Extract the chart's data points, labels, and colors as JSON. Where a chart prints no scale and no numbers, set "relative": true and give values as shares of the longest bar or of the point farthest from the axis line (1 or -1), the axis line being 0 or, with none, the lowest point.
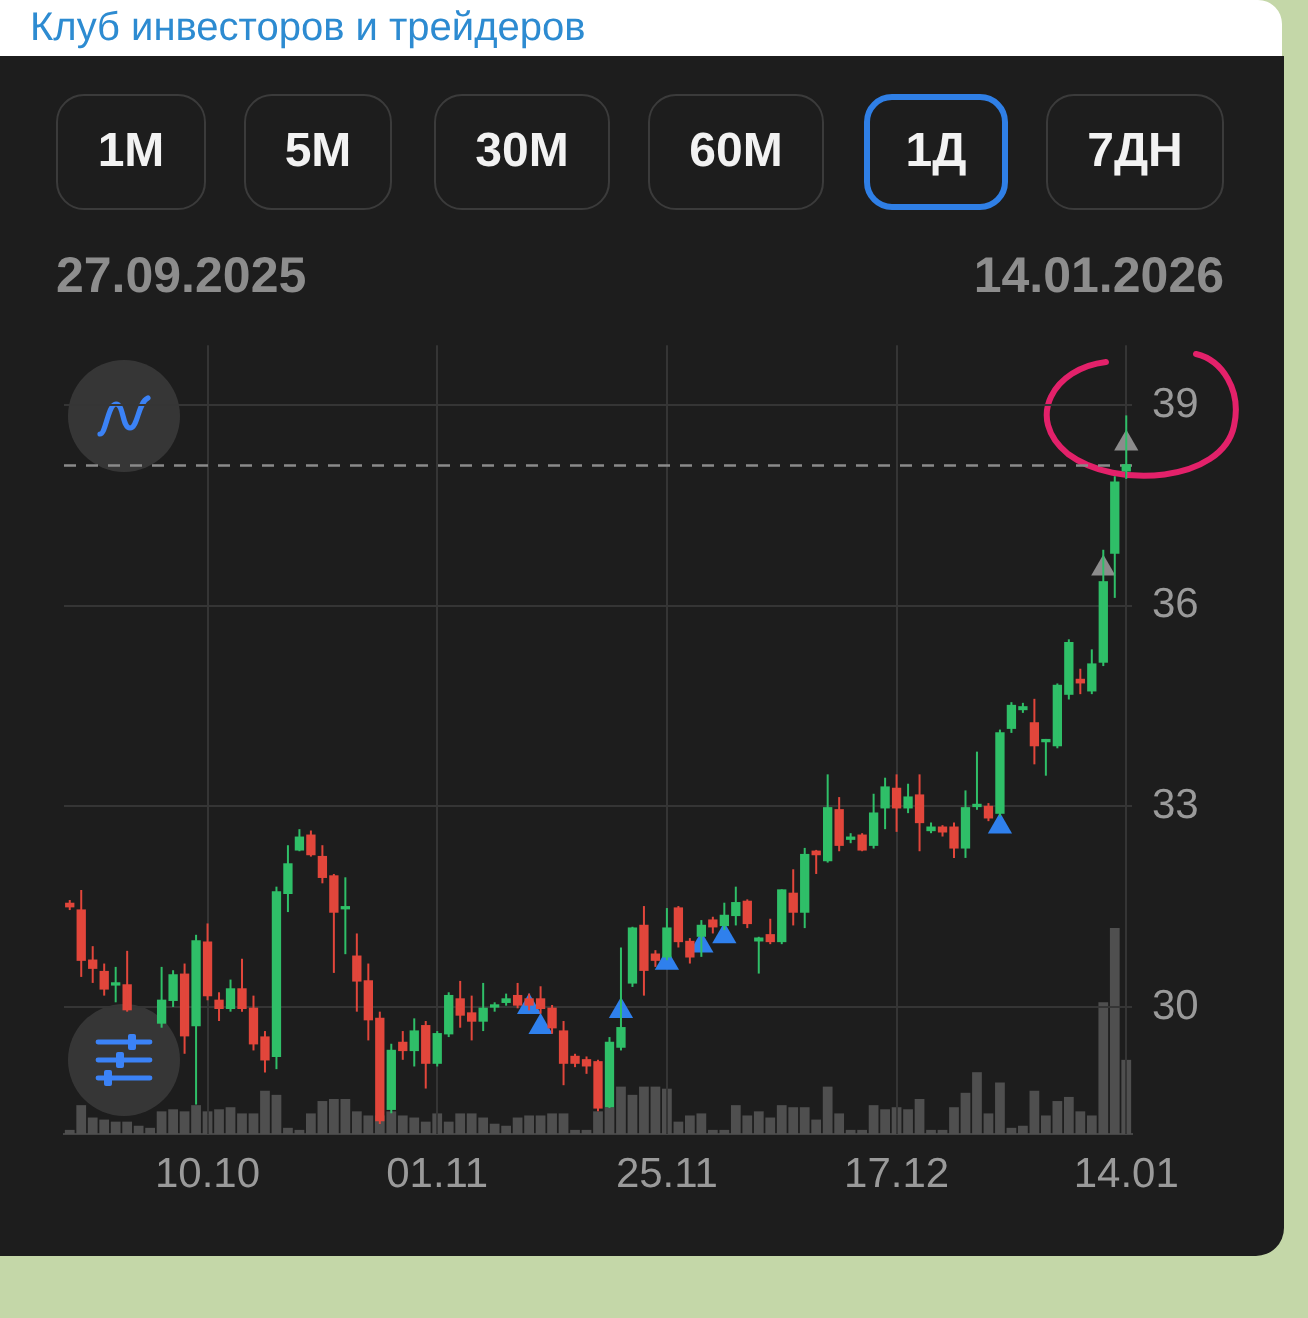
{
  "chart_data": [
    {
      "type": "candlestick",
      "annotations": [
        "Клуб инвесторов и трейдеров",
        "1М",
        "5М",
        "30М",
        "60М",
        "1Д",
        "7ДН",
        "27.09.2025",
        "14.01.2026"
      ],
      "categories": [
        null,
        null,
        null,
        null,
        null,
        null,
        null,
        null,
        null,
        null,
        null,
        null,
        "10.10",
        null,
        null,
        null,
        null,
        null,
        null,
        null,
        null,
        null,
        null,
        null,
        null,
        null,
        null,
        null,
        null,
        null,
        null,
        null,
        "01.11",
        null,
        null,
        null,
        null,
        null,
        null,
        null,
        null,
        null,
        null,
        null,
        null,
        null,
        null,
        null,
        null,
        null,
        null,
        null,
        "25.11",
        null,
        null,
        null,
        null,
        null,
        null,
        null,
        null,
        null,
        null,
        null,
        null,
        null,
        null,
        null,
        null,
        null,
        null,
        null,
        "17.12",
        null,
        null,
        null,
        null,
        null,
        null,
        null,
        null,
        null,
        null,
        null,
        null,
        null,
        null,
        null,
        null,
        null,
        null,
        null,
        "14.01"
      ],
      "ohlc": [
        [
          31.55,
          31.6,
          31.45,
          31.5
        ],
        [
          31.45,
          31.75,
          30.45,
          30.7
        ],
        [
          30.7,
          30.91,
          30.36,
          30.58
        ],
        [
          30.53,
          30.65,
          30.17,
          30.27
        ],
        [
          30.33,
          30.6,
          30.07,
          30.36
        ],
        [
          30.33,
          30.84,
          29.93,
          29.96
        ],
        null,
        null,
        [
          29.76,
          30.6,
          29.69,
          30.1
        ],
        [
          30.1,
          30.55,
          30.0,
          30.48
        ],
        [
          30.49,
          30.65,
          29.3,
          29.57
        ],
        [
          29.72,
          31.08,
          28.54,
          30.99
        ],
        [
          30.97,
          31.25,
          30.1,
          30.17
        ],
        [
          30.1,
          30.22,
          29.79,
          29.98
        ],
        [
          29.98,
          30.41,
          29.93,
          30.27
        ],
        [
          30.27,
          30.72,
          29.93,
          29.98
        ],
        [
          29.98,
          30.17,
          29.35,
          29.45
        ],
        [
          29.55,
          29.64,
          29.02,
          29.21
        ],
        [
          29.26,
          31.8,
          29.07,
          31.72
        ],
        [
          31.7,
          32.42,
          31.42,
          32.14
        ],
        [
          32.35,
          32.66,
          32.33,
          32.54
        ],
        [
          32.57,
          32.64,
          32.25,
          32.28
        ],
        [
          32.25,
          32.42,
          31.85,
          31.94
        ],
        [
          31.96,
          31.99,
          30.51,
          31.42
        ],
        [
          31.47,
          31.94,
          30.79,
          31.5
        ],
        [
          30.76,
          31.1,
          29.93,
          30.39
        ],
        [
          30.39,
          30.65,
          29.5,
          29.81
        ],
        [
          29.83,
          29.93,
          28.25,
          28.3
        ],
        [
          28.47,
          29.45,
          28.41,
          29.35
        ],
        [
          29.47,
          29.64,
          29.21,
          29.35
        ],
        [
          29.35,
          29.83,
          29.11,
          29.64
        ],
        [
          29.72,
          29.79,
          28.78,
          29.16
        ],
        [
          29.16,
          29.64,
          29.11,
          29.6
        ],
        [
          29.6,
          30.22,
          29.55,
          30.17
        ],
        [
          30.12,
          30.39,
          29.69,
          29.88
        ],
        [
          29.91,
          30.17,
          29.5,
          29.79
        ],
        [
          29.79,
          30.36,
          29.64,
          29.98
        ],
        [
          30.0,
          30.07,
          29.93,
          30.03
        ],
        [
          30.07,
          30.2,
          30.02,
          30.12
        ],
        [
          30.17,
          30.36,
          29.98,
          30.03
        ],
        [
          30.12,
          30.2,
          29.95,
          30.03
        ],
        [
          30.12,
          30.31,
          29.9,
          29.98
        ],
        [
          29.98,
          30.03,
          29.6,
          29.69
        ],
        [
          29.64,
          29.79,
          28.83,
          29.16
        ],
        [
          29.26,
          29.3,
          29.1,
          29.16
        ],
        [
          29.21,
          29.26,
          29.0,
          29.12
        ],
        [
          29.18,
          29.21,
          28.44,
          28.49
        ],
        [
          28.51,
          29.55,
          28.49,
          29.47
        ],
        [
          29.4,
          30.89,
          29.35,
          29.69
        ],
        [
          30.36,
          31.2,
          30.3,
          31.18
        ],
        [
          31.22,
          31.51,
          30.17,
          30.55
        ],
        [
          30.79,
          30.85,
          30.6,
          30.7
        ],
        [
          30.75,
          31.48,
          30.7,
          31.18
        ],
        [
          31.48,
          31.51,
          30.89,
          30.98
        ],
        [
          30.98,
          31.03,
          30.65,
          30.75
        ],
        [
          31.06,
          31.3,
          30.75,
          31.22
        ],
        [
          31.3,
          31.35,
          31.1,
          31.2
        ],
        [
          31.22,
          31.56,
          31.15,
          31.37
        ],
        [
          31.37,
          31.8,
          31.22,
          31.56
        ],
        [
          31.58,
          31.61,
          31.18,
          31.25
        ],
        [
          30.99,
          31.05,
          30.5,
          31.03
        ],
        [
          31.08,
          31.32,
          30.94,
          30.98
        ],
        [
          30.98,
          31.76,
          30.94,
          31.75
        ],
        [
          31.7,
          32.06,
          31.22,
          31.42
        ],
        [
          31.42,
          32.38,
          31.18,
          32.28
        ],
        [
          32.33,
          32.35,
          31.99,
          32.28
        ],
        [
          32.19,
          33.48,
          32.16,
          32.98
        ],
        [
          32.95,
          33.14,
          32.33,
          32.42
        ],
        [
          32.51,
          32.6,
          32.45,
          32.54
        ],
        [
          32.57,
          32.6,
          32.33,
          32.35
        ],
        [
          32.42,
          33.19,
          32.37,
          32.9
        ],
        [
          32.98,
          33.43,
          32.66,
          33.29
        ],
        [
          33.27,
          33.48,
          32.62,
          32.98
        ],
        [
          32.98,
          33.34,
          32.9,
          33.14
        ],
        [
          33.17,
          33.48,
          32.33,
          32.76
        ],
        [
          32.64,
          32.76,
          32.6,
          32.69
        ],
        [
          32.69,
          32.72,
          32.55,
          32.62
        ],
        [
          32.69,
          32.76,
          32.23,
          32.38
        ],
        [
          32.38,
          33.24,
          32.23,
          32.98
        ],
        [
          33.0,
          33.82,
          32.95,
          33.03
        ],
        [
          33.0,
          33.05,
          32.78,
          32.83
        ],
        [
          32.9,
          34.15,
          32.85,
          34.1
        ],
        [
          34.17,
          34.56,
          34.1,
          34.51
        ],
        [
          34.45,
          34.55,
          34.4,
          34.49
        ],
        [
          34.25,
          34.61,
          33.63,
          33.91
        ],
        [
          33.97,
          34.01,
          33.46,
          34.0
        ],
        [
          33.91,
          34.84,
          33.87,
          34.81
        ],
        [
          34.68,
          35.5,
          34.6,
          35.45
        ],
        [
          34.9,
          35.06,
          34.68,
          34.85
        ],
        [
          34.73,
          35.35,
          34.68,
          35.13
        ],
        [
          35.16,
          36.84,
          35.1,
          36.36
        ],
        [
          36.79,
          37.94,
          36.12,
          37.85
        ],
        [
          38.02,
          38.85,
          37.9,
          38.11
        ]
      ],
      "colors": [
        "#e2463b",
        "#e2463b",
        "#e2463b",
        "#e2463b",
        "#2fbf68",
        "#e2463b",
        null,
        null,
        "#2fbf68",
        "#2fbf68",
        "#e2463b",
        "#2fbf68",
        "#e2463b",
        "#e2463b",
        "#2fbf68",
        "#e2463b",
        "#e2463b",
        "#e2463b",
        "#2fbf68",
        "#2fbf68",
        "#2fbf68",
        "#e2463b",
        "#e2463b",
        "#e2463b",
        "#2fbf68",
        "#e2463b",
        "#e2463b",
        "#e2463b",
        "#2fbf68",
        "#e2463b",
        "#2fbf68",
        "#e2463b",
        "#2fbf68",
        "#2fbf68",
        "#e2463b",
        "#e2463b",
        "#2fbf68",
        "#2fbf68",
        "#2fbf68",
        "#e2463b",
        "#e2463b",
        "#e2463b",
        "#e2463b",
        "#e2463b",
        "#e2463b",
        "#e2463b",
        "#e2463b",
        "#2fbf68",
        "#2fbf68",
        "#2fbf68",
        "#e2463b",
        "#e2463b",
        "#2fbf68",
        "#e2463b",
        "#e2463b",
        "#2fbf68",
        "#e2463b",
        "#2fbf68",
        "#2fbf68",
        "#e2463b",
        "#2fbf68",
        "#e2463b",
        "#2fbf68",
        "#e2463b",
        "#2fbf68",
        "#e2463b",
        "#2fbf68",
        "#e2463b",
        "#2fbf68",
        "#e2463b",
        "#2fbf68",
        "#2fbf68",
        "#e2463b",
        "#2fbf68",
        "#e2463b",
        "#2fbf68",
        "#e2463b",
        "#e2463b",
        "#2fbf68",
        "#2fbf68",
        "#e2463b",
        "#2fbf68",
        "#2fbf68",
        "#2fbf68",
        "#e2463b",
        "#2fbf68",
        "#2fbf68",
        "#2fbf68",
        "#e2463b",
        "#2fbf68",
        "#2fbf68",
        "#2fbf68",
        "#2fbf68"
      ],
      "series": [
        {
          "type": "scatter",
          "color": "#2f80ed",
          "marker": "triangle",
          "values": [
            null,
            null,
            null,
            null,
            null,
            null,
            null,
            null,
            null,
            null,
            null,
            null,
            null,
            null,
            null,
            null,
            null,
            null,
            null,
            null,
            null,
            null,
            null,
            null,
            null,
            null,
            null,
            null,
            null,
            null,
            null,
            null,
            null,
            null,
            null,
            null,
            null,
            null,
            null,
            null,
            30.0,
            29.7,
            null,
            null,
            null,
            null,
            null,
            null,
            29.94,
            null,
            null,
            null,
            30.66,
            null,
            null,
            30.92,
            null,
            31.06,
            null,
            null,
            null,
            null,
            null,
            null,
            null,
            null,
            null,
            null,
            null,
            null,
            null,
            null,
            null,
            null,
            null,
            null,
            null,
            null,
            null,
            null,
            null,
            32.7,
            null,
            null,
            null,
            null,
            null,
            null,
            null,
            null,
            null,
            null,
            null
          ]
        },
        {
          "type": "scatter",
          "color": "#8c8c8c",
          "marker": "triangle",
          "values": [
            null,
            null,
            null,
            null,
            null,
            null,
            null,
            null,
            null,
            null,
            null,
            null,
            null,
            null,
            null,
            null,
            null,
            null,
            null,
            null,
            null,
            null,
            null,
            null,
            null,
            null,
            null,
            null,
            null,
            null,
            null,
            null,
            null,
            null,
            null,
            null,
            null,
            null,
            null,
            null,
            null,
            null,
            null,
            null,
            null,
            null,
            null,
            null,
            null,
            null,
            null,
            null,
            null,
            null,
            null,
            null,
            null,
            null,
            null,
            null,
            null,
            null,
            null,
            null,
            null,
            null,
            null,
            null,
            null,
            null,
            null,
            null,
            null,
            null,
            null,
            null,
            null,
            null,
            null,
            null,
            null,
            null,
            null,
            null,
            null,
            null,
            null,
            null,
            null,
            null,
            36.56,
            null,
            38.43
          ]
        }
      ],
      "ylim": [
        28.1,
        39.9
      ],
      "yticks": [
        30,
        33,
        36,
        39
      ],
      "grid": true,
      "ref_lines": [
        {
          "axis": "y",
          "value": 38.1,
          "color": "#8a8a8a",
          "line_style": "dashed"
        }
      ]
    },
    {
      "type": "bar",
      "relative": true,
      "color": "#4f4f4f",
      "categories": [
        null,
        null,
        null,
        null,
        null,
        null,
        null,
        null,
        null,
        null,
        null,
        null,
        null,
        null,
        null,
        null,
        null,
        null,
        null,
        null,
        null,
        null,
        null,
        null,
        null,
        null,
        null,
        null,
        null,
        null,
        null,
        null,
        null,
        null,
        null,
        null,
        null,
        null,
        null,
        null,
        null,
        null,
        null,
        null,
        null,
        null,
        null,
        null,
        null,
        null,
        null,
        null,
        null,
        null,
        null,
        null,
        null,
        null,
        null,
        null,
        null,
        null,
        null,
        null,
        null,
        null,
        null,
        null,
        null,
        null,
        null,
        null,
        null,
        null,
        null,
        null,
        null,
        null,
        null,
        null,
        null,
        null,
        null,
        null,
        null,
        null,
        null,
        null,
        null,
        null,
        null,
        null,
        null
      ],
      "values": [
        0.02,
        0.14,
        0.08,
        0.07,
        0.06,
        0.06,
        0.04,
        0.03,
        0.11,
        0.12,
        0.11,
        0.14,
        0.11,
        0.12,
        0.13,
        0.1,
        0.1,
        0.21,
        0.19,
        0.03,
        0.02,
        0.1,
        0.16,
        0.17,
        0.17,
        0.11,
        0.09,
        0.09,
        0.11,
        0.09,
        0.08,
        0.06,
        0.1,
        0.06,
        0.1,
        0.1,
        0.08,
        0.05,
        0.04,
        0.08,
        0.09,
        0.09,
        0.1,
        0.1,
        0.02,
        0.02,
        0.11,
        0.13,
        0.23,
        0.19,
        0.23,
        0.23,
        0.22,
        0.06,
        0.09,
        0.1,
        0.02,
        0.02,
        0.14,
        0.09,
        0.11,
        0.08,
        0.14,
        0.13,
        0.13,
        0.07,
        0.23,
        0.1,
        0.02,
        0.02,
        0.14,
        0.12,
        0.13,
        0.12,
        0.17,
        0.02,
        0.02,
        0.13,
        0.2,
        0.3,
        0.1,
        0.25,
        0.03,
        0.04,
        0.21,
        0.09,
        0.16,
        0.18,
        0.11,
        0.09,
        0.64,
        1,
        0.36
      ]
    }
  ]
}
